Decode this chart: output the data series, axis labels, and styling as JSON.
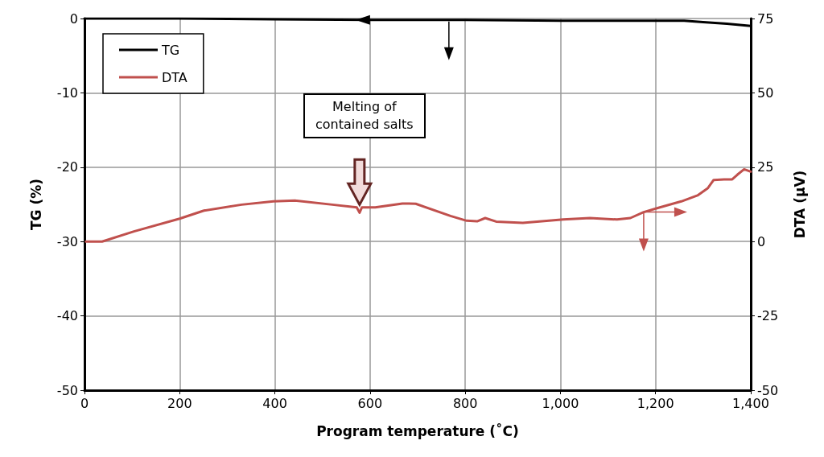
{
  "chart_data": {
    "type": "line",
    "xlabel": "Program temperature (˚C)",
    "ylabel": "TG (%)",
    "y2label": "DTA (μV)",
    "xlim": [
      0,
      1400
    ],
    "xticks": [
      0,
      200,
      400,
      600,
      800,
      {
        "value": 1000,
        "label": "1,000"
      },
      {
        "value": 1200,
        "label": "1,200"
      },
      {
        "value": 1400,
        "label": "1,400"
      }
    ],
    "ylim": [
      -50,
      0
    ],
    "yticks": [
      -50,
      -40,
      -30,
      -20,
      -10,
      0
    ],
    "y2lim": [
      -50,
      75
    ],
    "y2ticks": [
      -50,
      -25,
      0,
      25,
      50,
      75
    ],
    "grid": true,
    "legend": "top left",
    "marker": "none",
    "line_style": "solid",
    "annotations": [
      "Melting of contained salts"
    ],
    "series": [
      {
        "name": "TG",
        "color": "#000000",
        "x": [
          0,
          200,
          400,
          600,
          800,
          1000,
          1200,
          1260,
          1300,
          1350,
          1400
        ],
        "values": [
          0,
          0,
          -0.1,
          -0.2,
          -0.2,
          -0.3,
          -0.3,
          -0.3,
          -0.5,
          -0.7,
          -1.0
        ]
      },
      {
        "name": "DTA",
        "color": "#c0504d",
        "axis": "y2",
        "x": [
          3,
          37,
          104,
          200,
          251,
          330,
          397,
          442,
          521,
          572,
          578,
          583,
          611,
          668,
          696,
          769,
          803,
          825,
          842,
          865,
          921,
          1006,
          1062,
          1119,
          1147,
          1175,
          1209,
          1254,
          1288,
          1310,
          1322,
          1344,
          1361,
          1372,
          1386,
          1400
        ],
        "values": [
          0,
          0,
          3.4,
          7.7,
          10.4,
          12.4,
          13.5,
          13.8,
          12.4,
          11.5,
          9.7,
          11.5,
          11.5,
          12.8,
          12.7,
          8.6,
          7.0,
          6.8,
          7.9,
          6.7,
          6.3,
          7.4,
          7.9,
          7.4,
          7.9,
          9.9,
          11.5,
          13.5,
          15.5,
          18.0,
          20.7,
          20.9,
          20.9,
          22.5,
          24.3,
          23.5
        ]
      }
    ]
  }
}
